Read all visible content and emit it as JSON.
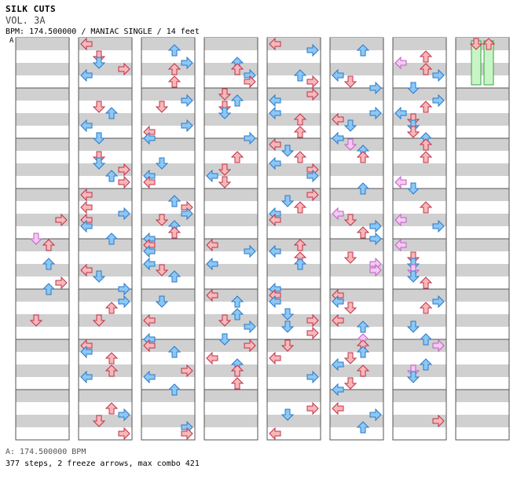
{
  "header": {
    "title": "SILK CUTS",
    "volume": "VOL. 3A",
    "meta": "BPM: 174.500000 / MANIAC SINGLE / 14 feet",
    "segment_label": "A"
  },
  "footer": {
    "bpm_line": "A: 174.500000 BPM",
    "stats_line": "377 steps, 2 freeze arrows, max combo 421"
  },
  "colors": {
    "red_fill": "#f7b8b8",
    "red_stroke": "#c0304a",
    "blue_fill": "#8cc8f5",
    "blue_stroke": "#2a78c8",
    "pink_fill": "#f5c8f5",
    "pink_stroke": "#c060c0",
    "freeze_fill": "#c8f5c8",
    "freeze_stroke": "#40a040",
    "stripe": "#d0d0d0"
  },
  "columns": [
    {
      "notes": []
    },
    {
      "notes": []
    },
    {
      "notes": []
    },
    {
      "notes": []
    },
    {
      "notes": []
    },
    {
      "notes": []
    },
    {
      "notes": []
    },
    {
      "notes": []
    }
  ]
}
